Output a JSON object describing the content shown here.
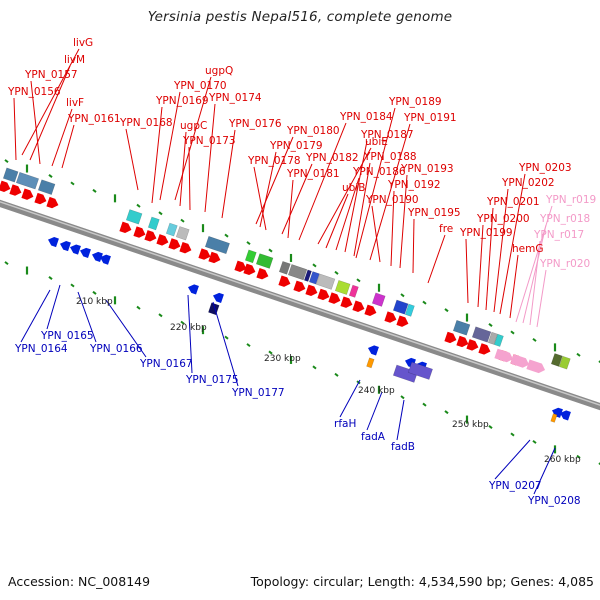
{
  "title": "Yersinia pestis Nepal516, complete genome",
  "footer": {
    "accession": "Accession: NC_008149",
    "topology": "Topology: circular; Length: 4,534,590 bp; Genes: 4,085"
  },
  "colors": {
    "forward_label": "#dd0000",
    "reverse_label": "#0000bb",
    "rna_label": "#f39ac8",
    "backbone": "#8a8a8a",
    "tick": "#1a8a1a"
  },
  "ruler_labels": [
    "210 kbp",
    "220 kbp",
    "230 kbp",
    "240 kbp",
    "250 kbp",
    "260 kbp"
  ],
  "forward_labels": [
    "livG",
    "livM",
    "YPN_0157",
    "YPN_0156",
    "livF",
    "YPN_0161",
    "YPN_0168",
    "ugpQ",
    "YPN_0170",
    "YPN_0169",
    "ugpC",
    "YPN_0173",
    "YPN_0174",
    "YPN_0176",
    "YPN_0180",
    "YPN_0179",
    "YPN_0178",
    "YPN_0182",
    "YPN_0181",
    "YPN_0184",
    "ubiE",
    "ubiB",
    "YPN_0186",
    "YPN_0187",
    "YPN_0188",
    "YPN_0189",
    "YPN_0191",
    "YPN_0190",
    "YPN_0192",
    "YPN_0193",
    "YPN_0195",
    "fre",
    "YPN_0199",
    "YPN_0200",
    "YPN_0201",
    "YPN_0202",
    "YPN_0203",
    "hemG"
  ],
  "rna_labels": [
    "YPN_r019",
    "YPN_r018",
    "YPN_r017",
    "YPN_r020"
  ],
  "reverse_labels": [
    "YPN_0165",
    "YPN_0164",
    "YPN_0166",
    "YPN_0167",
    "YPN_0175",
    "YPN_0177",
    "rfaH",
    "fadA",
    "fadB",
    "YPN_0207",
    "YPN_0208"
  ]
}
